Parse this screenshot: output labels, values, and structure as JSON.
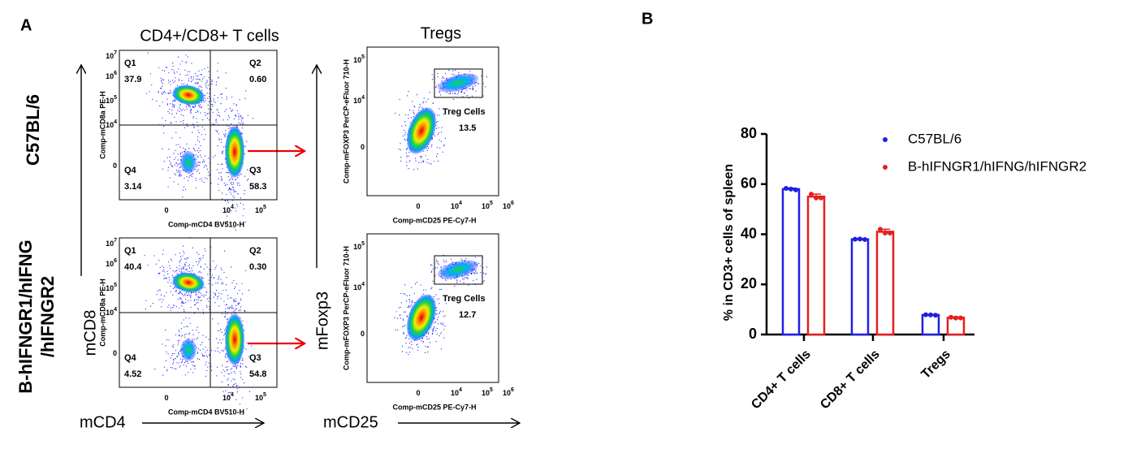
{
  "panel_a": {
    "label": "A",
    "column_titles": [
      "CD4+/CD8+ T cells",
      "Tregs"
    ],
    "axis_titles": {
      "cd8": "mCD8",
      "cd4": "mCD4",
      "foxp3": "mFoxp3",
      "cd25": "mCD25"
    },
    "cd_plot": {
      "ylabel": "Comp-mCD8a PE-H",
      "xlabel": "Comp-mCD4 BV510-H",
      "yticks": [
        {
          "base": "10",
          "exp": "7"
        },
        {
          "base": "10",
          "exp": "6"
        },
        {
          "base": "10",
          "exp": "5"
        },
        {
          "base": "10",
          "exp": "4"
        },
        {
          "label": "0"
        }
      ],
      "xticks": [
        {
          "label": "0"
        },
        {
          "base": "10",
          "exp": "4"
        },
        {
          "base": "10",
          "exp": "5"
        }
      ]
    },
    "treg_plot": {
      "ylabel": "Comp-mFOXP3 PerCP-eFluor 710-H",
      "xlabel": "Comp-mCD25 PE-Cy7-H",
      "gate": "Treg Cells",
      "yticks": [
        {
          "base": "10",
          "exp": "5"
        },
        {
          "base": "10",
          "exp": "4"
        },
        {
          "label": "0"
        }
      ],
      "xticks": [
        {
          "label": "0"
        },
        {
          "base": "10",
          "exp": "4"
        },
        {
          "base": "10",
          "exp": "5"
        },
        {
          "base": "10",
          "exp": "6"
        }
      ]
    },
    "rows": [
      {
        "label_lines": [
          "C57BL/6"
        ],
        "quadrants": [
          {
            "name": "Q1",
            "value": "37.9"
          },
          {
            "name": "Q2",
            "value": "0.60"
          },
          {
            "name": "Q4",
            "value": "3.14"
          },
          {
            "name": "Q3",
            "value": "58.3"
          }
        ],
        "treg": "13.5"
      },
      {
        "label_lines": [
          "B-hIFNGR1/hIFNG",
          "/hIFNGR2"
        ],
        "quadrants": [
          {
            "name": "Q1",
            "value": "40.4"
          },
          {
            "name": "Q2",
            "value": "0.30"
          },
          {
            "name": "Q4",
            "value": "4.52"
          },
          {
            "name": "Q3",
            "value": "54.8"
          }
        ],
        "treg": "12.7"
      }
    ]
  },
  "chart_data": {
    "type": "bar",
    "panel_label": "B",
    "ylabel": "% in CD3+ cells of spleen",
    "categories": [
      "CD4+ T cells",
      "CD8+ T cells",
      "Tregs"
    ],
    "series": [
      {
        "name": "C57BL/6",
        "color": "#1f1fe6",
        "values": [
          58,
          38,
          7.8
        ],
        "errors": [
          0.4,
          0.2,
          0.2
        ],
        "points": [
          [
            58.3,
            58,
            57.7
          ],
          [
            38,
            38.1,
            37.9
          ],
          [
            7.9,
            7.8,
            7.7
          ]
        ]
      },
      {
        "name": "B-hIFNGR1/hIFNG/hIFNGR2",
        "color": "#e61f1f",
        "values": [
          55,
          41,
          6.7
        ],
        "errors": [
          1,
          1,
          0.3
        ],
        "points": [
          [
            56,
            54.5,
            54.5
          ],
          [
            42,
            40.5,
            40.5
          ],
          [
            6.9,
            6.6,
            6.6
          ]
        ]
      }
    ],
    "ylim": [
      0,
      80
    ],
    "yticks": [
      0,
      20,
      40,
      60,
      80
    ]
  }
}
